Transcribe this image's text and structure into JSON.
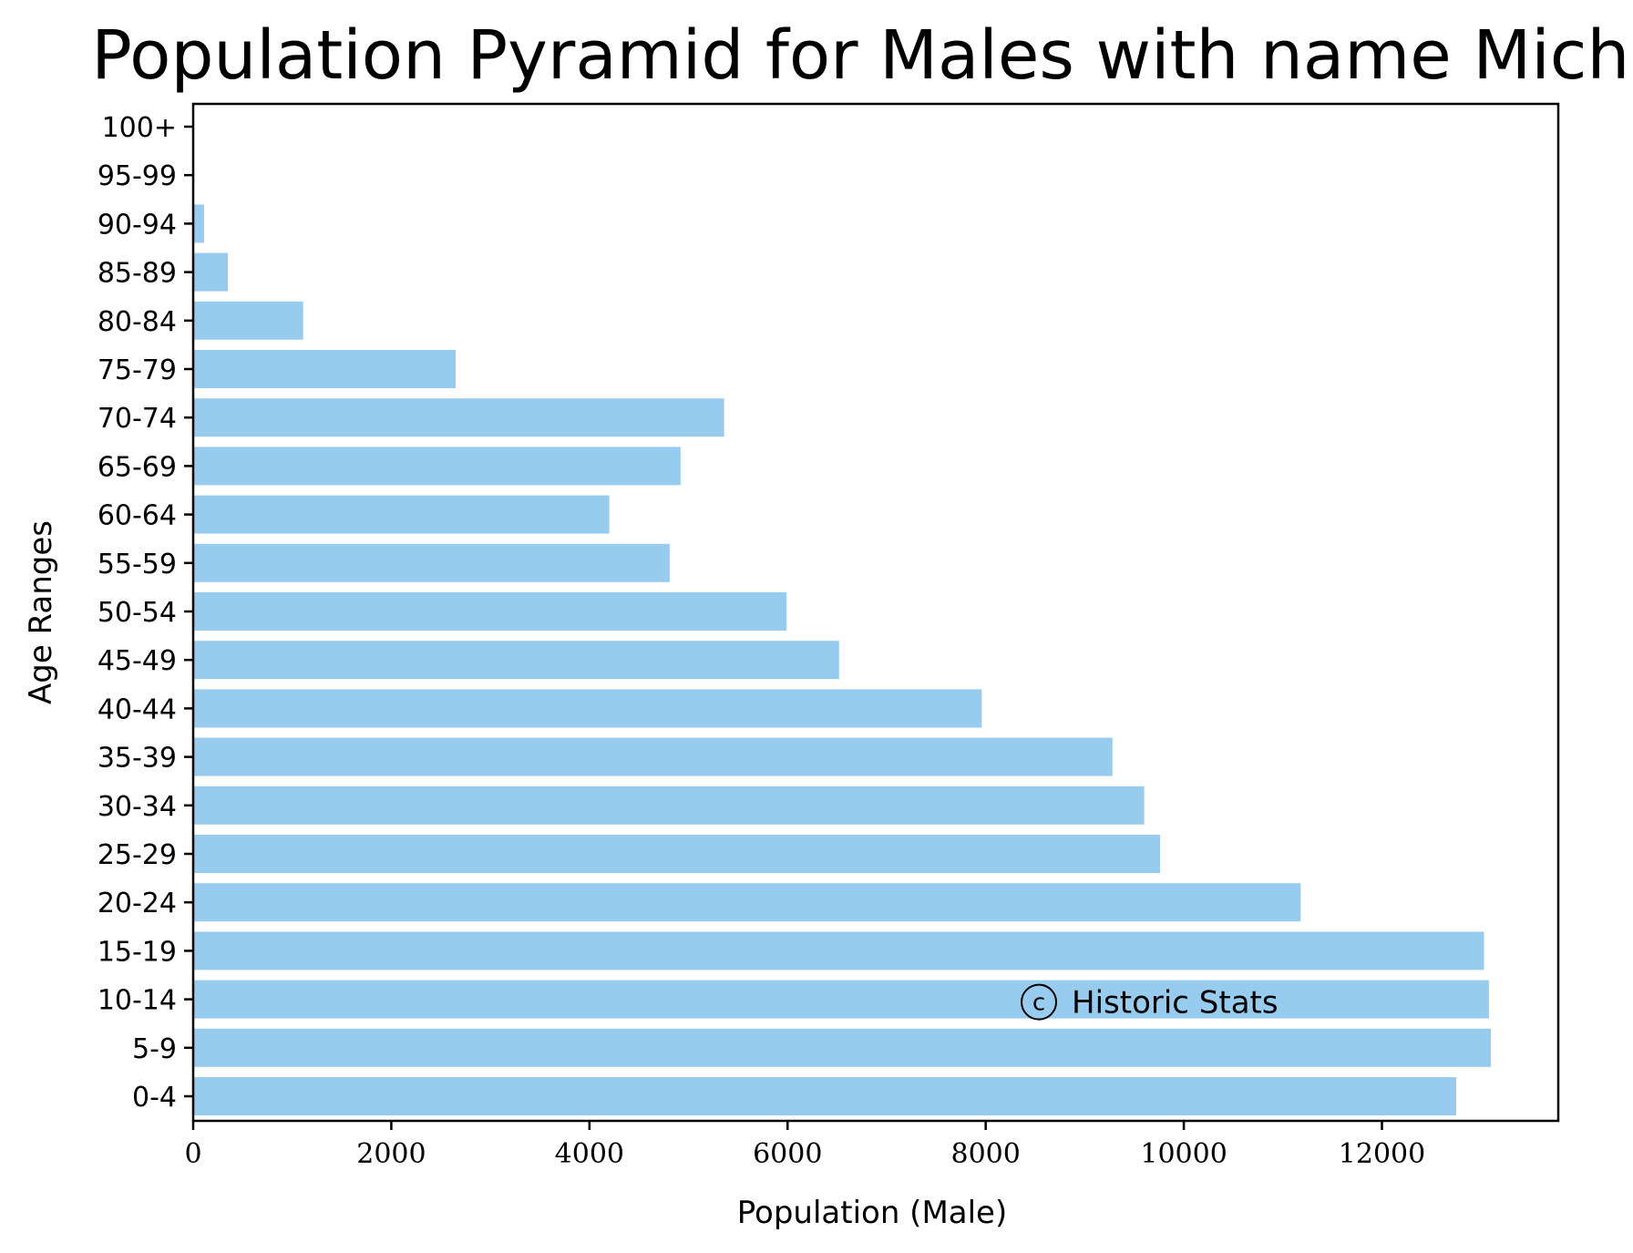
{
  "chart_data": {
    "type": "bar",
    "orientation": "horizontal",
    "title": "Population Pyramid for Males with name Michael",
    "xlabel": "Population (Male)",
    "ylabel": "Age Ranges",
    "categories": [
      "0-4",
      "5-9",
      "10-14",
      "15-19",
      "20-24",
      "25-29",
      "30-34",
      "35-39",
      "40-44",
      "45-49",
      "50-54",
      "55-59",
      "60-64",
      "65-69",
      "70-74",
      "75-79",
      "80-84",
      "85-89",
      "90-94",
      "95-99",
      "100+"
    ],
    "values": [
      12750,
      13100,
      13080,
      13030,
      11180,
      9760,
      9600,
      9280,
      7960,
      6520,
      5990,
      4810,
      4200,
      4920,
      5360,
      2650,
      1110,
      350,
      110,
      10,
      0
    ],
    "xlim": [
      0,
      13780
    ],
    "xticks": [
      "0",
      "2000",
      "4000",
      "6000",
      "8000",
      "10000",
      "12000"
    ],
    "xtick_values": [
      0,
      2000,
      4000,
      6000,
      8000,
      10000,
      12000
    ],
    "bar_color": "#98ccee",
    "grid": false,
    "annotation": {
      "text": "Historic Stats",
      "symbol": "c",
      "x": 8500,
      "y_category": "10-14"
    }
  }
}
